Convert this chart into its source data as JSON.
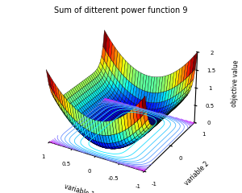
{
  "title": "Sum of ditterent power function 9",
  "xlabel": "variable 1",
  "ylabel": "variable 2",
  "zlabel": "objective value",
  "xlim": [
    -1,
    1
  ],
  "ylim": [
    -1,
    1
  ],
  "zlim": [
    0,
    2
  ],
  "n_points": 35,
  "figsize": [
    3.0,
    2.4
  ],
  "dpi": 100,
  "title_fontsize": 7,
  "label_fontsize": 5.5,
  "tick_fontsize": 5,
  "elev": 28,
  "azim": -60,
  "contour_levels": 18,
  "surf_rstride": 1,
  "surf_cstride": 1
}
